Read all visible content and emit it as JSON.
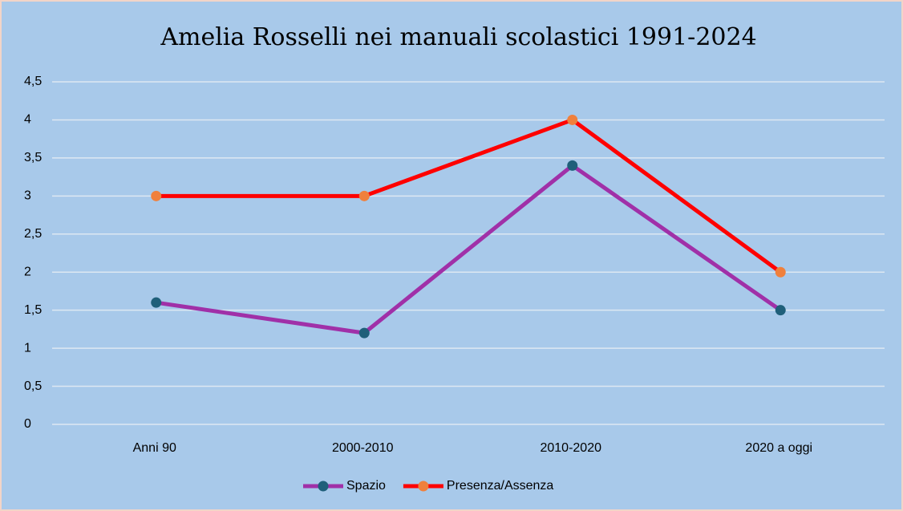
{
  "chart_data": {
    "type": "line",
    "title": "Amelia Rosselli nei manuali scolastici 1991-2024",
    "categories": [
      "Anni 90",
      "2000-2010",
      "2010-2020",
      "2020 a oggi"
    ],
    "series": [
      {
        "name": "Spazio",
        "color": "#a030a8",
        "marker_color": "#1f5f7a",
        "values": [
          1.6,
          1.2,
          3.4,
          1.5
        ]
      },
      {
        "name": "Presenza/Assenza",
        "color": "#ff0000",
        "marker_color": "#f0803c",
        "values": [
          3,
          3,
          4,
          2
        ]
      }
    ],
    "ylim": [
      0,
      4.5
    ],
    "yticks": [
      0,
      {
        "value": 0.5,
        "label": "0,5"
      },
      1,
      {
        "value": 1.5,
        "label": "1,5"
      },
      2,
      {
        "value": 2.5,
        "label": "2,5"
      },
      3,
      {
        "value": 3.5,
        "label": "3,5"
      },
      4,
      {
        "value": 4.5,
        "label": "4,5"
      }
    ],
    "grid": true,
    "legend": "bottom"
  }
}
